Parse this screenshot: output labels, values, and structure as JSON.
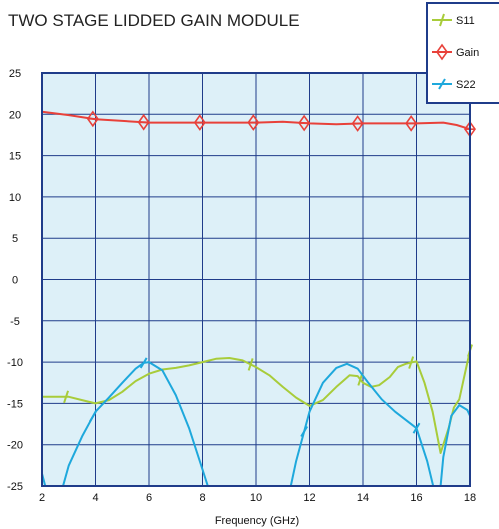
{
  "chart_data": {
    "type": "line",
    "title": "TWO STAGE LIDDED GAIN MODULE",
    "xlabel": "Frequency (GHz)",
    "ylabel": "",
    "xlim": [
      2,
      18
    ],
    "ylim": [
      -25,
      25
    ],
    "x_ticks": [
      "2",
      "4",
      "6",
      "8",
      "10",
      "12",
      "14",
      "16",
      "18"
    ],
    "y_ticks": [
      "25",
      "20",
      "15",
      "10",
      "5",
      "0",
      "-5",
      "-10",
      "-15",
      "-20",
      "-25"
    ],
    "grid": true,
    "legend_position": "top-right",
    "colors": {
      "plot_background": "#ddf0f8",
      "grid": "#1f3c8a",
      "frame": "#1f3c8a"
    },
    "series": [
      {
        "name": "S11",
        "color": "#a8cc3a",
        "marker": "tick",
        "marker_x": [
          2.9,
          9.8,
          13.9,
          15.8,
          18.0
        ],
        "points": [
          [
            2.0,
            -14.2
          ],
          [
            2.5,
            -14.2
          ],
          [
            3.0,
            -14.2
          ],
          [
            3.5,
            -14.6
          ],
          [
            4.0,
            -15.0
          ],
          [
            4.5,
            -14.6
          ],
          [
            5.0,
            -13.6
          ],
          [
            5.5,
            -12.3
          ],
          [
            6.0,
            -11.4
          ],
          [
            6.5,
            -10.9
          ],
          [
            7.0,
            -10.7
          ],
          [
            7.5,
            -10.4
          ],
          [
            8.0,
            -10.0
          ],
          [
            8.5,
            -9.6
          ],
          [
            9.0,
            -9.5
          ],
          [
            9.5,
            -9.8
          ],
          [
            10.0,
            -10.6
          ],
          [
            10.5,
            -11.6
          ],
          [
            11.0,
            -13.0
          ],
          [
            11.5,
            -14.3
          ],
          [
            12.0,
            -15.3
          ],
          [
            12.5,
            -14.6
          ],
          [
            13.0,
            -13.0
          ],
          [
            13.5,
            -11.6
          ],
          [
            13.8,
            -11.7
          ],
          [
            14.0,
            -12.5
          ],
          [
            14.3,
            -13.0
          ],
          [
            14.6,
            -12.8
          ],
          [
            15.0,
            -11.8
          ],
          [
            15.3,
            -10.6
          ],
          [
            15.6,
            -10.2
          ],
          [
            16.0,
            -9.9
          ],
          [
            16.3,
            -12.5
          ],
          [
            16.6,
            -16.0
          ],
          [
            16.9,
            -21.0
          ],
          [
            17.2,
            -18.0
          ],
          [
            17.4,
            -15.5
          ],
          [
            17.6,
            -14.5
          ],
          [
            17.8,
            -11.5
          ],
          [
            18.0,
            -8.6
          ]
        ]
      },
      {
        "name": "Gain",
        "color": "#e8413a",
        "marker": "diamond",
        "marker_x": [
          3.9,
          5.8,
          7.9,
          9.9,
          11.8,
          13.8,
          15.8,
          18.0
        ],
        "points": [
          [
            2.0,
            20.3
          ],
          [
            3.0,
            19.9
          ],
          [
            4.0,
            19.4
          ],
          [
            5.0,
            19.2
          ],
          [
            6.0,
            19.0
          ],
          [
            7.0,
            19.0
          ],
          [
            8.0,
            19.0
          ],
          [
            9.0,
            19.0
          ],
          [
            10.0,
            19.0
          ],
          [
            11.0,
            19.1
          ],
          [
            12.0,
            18.9
          ],
          [
            13.0,
            18.8
          ],
          [
            14.0,
            18.9
          ],
          [
            15.0,
            18.9
          ],
          [
            16.0,
            18.9
          ],
          [
            17.0,
            19.0
          ],
          [
            17.5,
            18.7
          ],
          [
            18.0,
            18.2
          ]
        ]
      },
      {
        "name": "S22",
        "color": "#1ea8dc",
        "marker": "cross",
        "marker_x": [
          3.9,
          5.8,
          11.8,
          16.0
        ],
        "points": [
          [
            2.0,
            -23.5
          ],
          [
            2.2,
            -26.0
          ],
          [
            null,
            null
          ],
          [
            2.7,
            -26.0
          ],
          [
            3.0,
            -22.5
          ],
          [
            3.5,
            -19.0
          ],
          [
            4.0,
            -16.0
          ],
          [
            4.5,
            -14.3
          ],
          [
            5.0,
            -12.5
          ],
          [
            5.5,
            -10.8
          ],
          [
            5.8,
            -10.1
          ],
          [
            6.0,
            -10.0
          ],
          [
            6.5,
            -11.0
          ],
          [
            7.0,
            -14.0
          ],
          [
            7.5,
            -18.0
          ],
          [
            8.0,
            -23.0
          ],
          [
            8.2,
            -25.0
          ],
          [
            8.3,
            -26.0
          ],
          [
            null,
            null
          ],
          [
            11.2,
            -26.0
          ],
          [
            11.3,
            -25.0
          ],
          [
            11.5,
            -22.0
          ],
          [
            12.0,
            -16.0
          ],
          [
            12.5,
            -12.5
          ],
          [
            13.0,
            -10.7
          ],
          [
            13.4,
            -10.2
          ],
          [
            13.8,
            -10.8
          ],
          [
            14.2,
            -12.5
          ],
          [
            14.7,
            -14.5
          ],
          [
            15.2,
            -16.0
          ],
          [
            15.6,
            -17.0
          ],
          [
            16.0,
            -18.0
          ],
          [
            16.4,
            -22.0
          ],
          [
            16.7,
            -26.0
          ],
          [
            null,
            null
          ],
          [
            16.8,
            -26.0
          ],
          [
            16.9,
            -25.0
          ],
          [
            17.0,
            -21.5
          ],
          [
            17.3,
            -16.5
          ],
          [
            17.6,
            -15.2
          ],
          [
            17.9,
            -15.8
          ],
          [
            18.0,
            -16.5
          ]
        ]
      }
    ]
  }
}
